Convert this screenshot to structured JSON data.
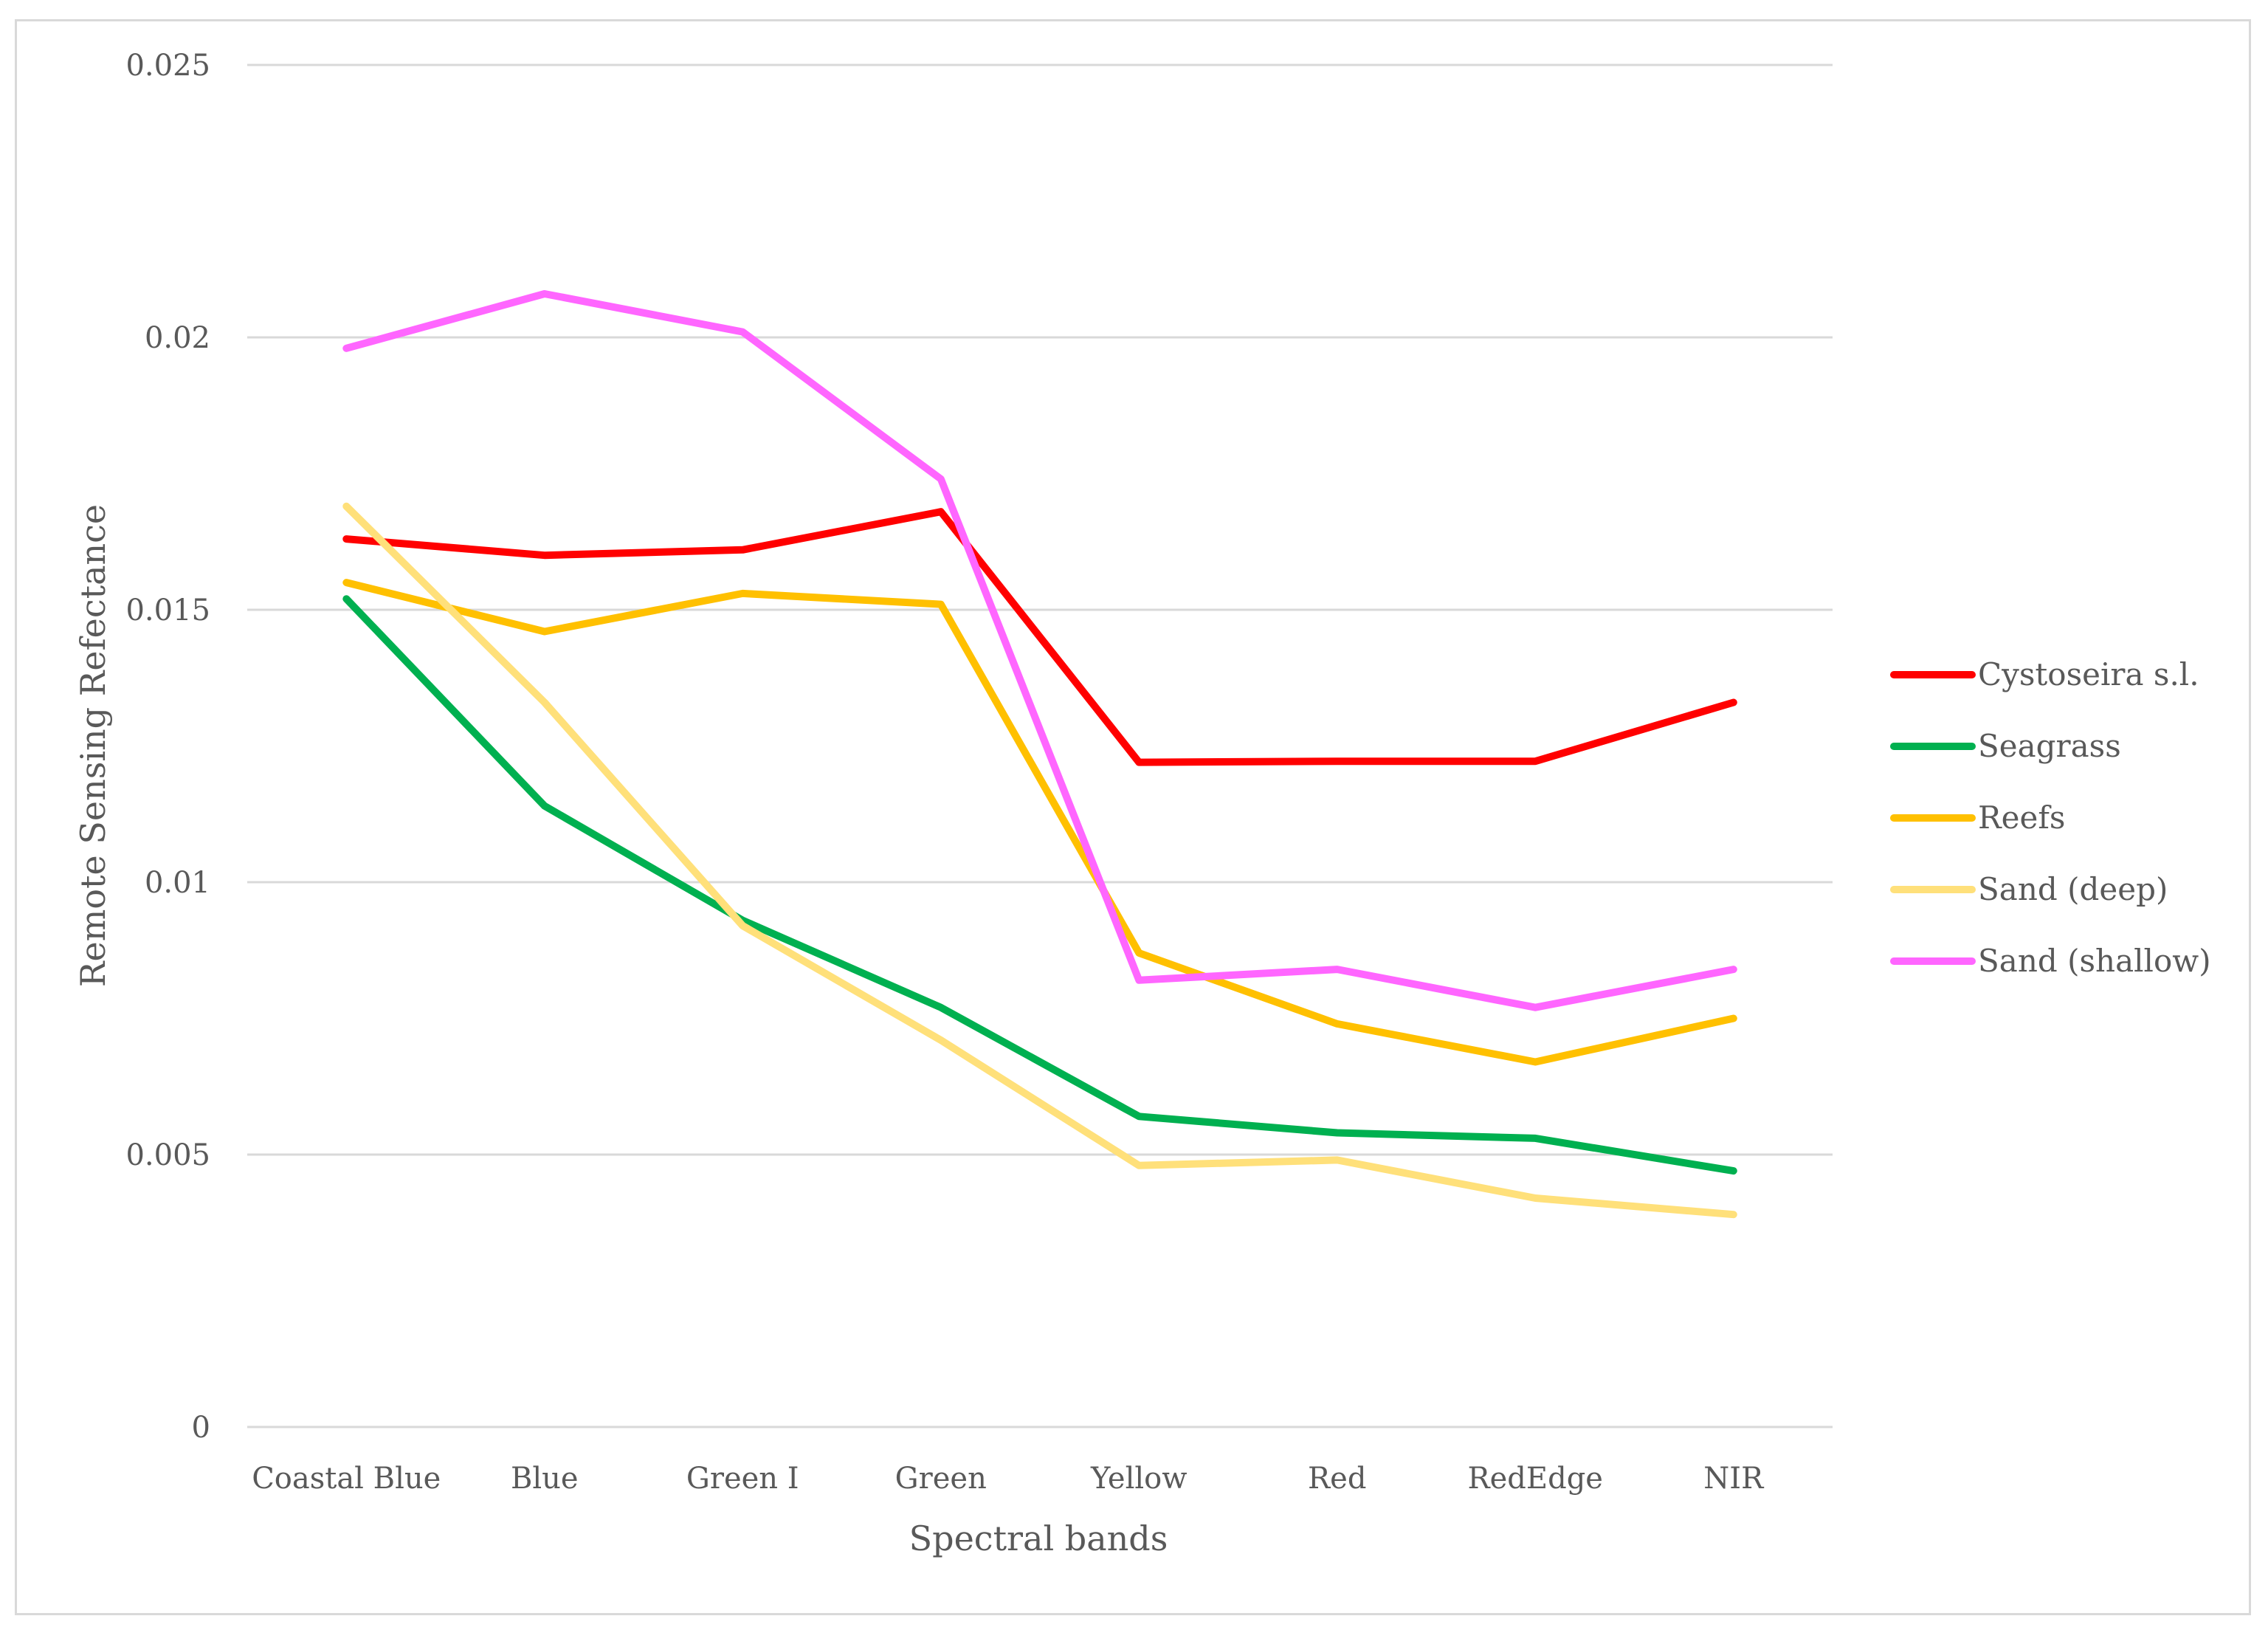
{
  "chart_data": {
    "type": "line",
    "title": "",
    "xlabel": "Spectral bands",
    "ylabel": "Remote Sensing Refectance",
    "categories": [
      "Coastal Blue",
      "Blue",
      "Green I",
      "Green",
      "Yellow",
      "Red",
      "RedEdge",
      "NIR"
    ],
    "ylim": [
      0,
      0.025
    ],
    "yticks": [
      0,
      0.005,
      0.01,
      0.015,
      0.02,
      0.025
    ],
    "ytick_labels": [
      "0",
      "0.005",
      "0.01",
      "0.015",
      "0.02",
      "0.025"
    ],
    "grid": "horizontal",
    "legend": "right",
    "series": [
      {
        "name": "Cystoseira s.l.",
        "color": "#ff0000",
        "values": [
          0.0163,
          0.016,
          0.0161,
          0.0168,
          0.0122,
          0.01222,
          0.01222,
          0.0133
        ]
      },
      {
        "name": "Seagrass",
        "color": "#00b050",
        "values": [
          0.0152,
          0.0114,
          0.0093,
          0.0077,
          0.0057,
          0.0054,
          0.0053,
          0.0047
        ]
      },
      {
        "name": "Reefs",
        "color": "#ffc000",
        "values": [
          0.0155,
          0.0146,
          0.0153,
          0.0151,
          0.0087,
          0.0074,
          0.0067,
          0.0075
        ]
      },
      {
        "name": "Sand (deep)",
        "color": "#ffe07a",
        "values": [
          0.0169,
          0.0133,
          0.0092,
          0.0071,
          0.0048,
          0.0049,
          0.0042,
          0.0039
        ]
      },
      {
        "name": "Sand (shallow)",
        "color": "#ff66ff",
        "values": [
          0.0198,
          0.0208,
          0.0201,
          0.0174,
          0.0082,
          0.0084,
          0.0077,
          0.0084
        ]
      }
    ]
  }
}
